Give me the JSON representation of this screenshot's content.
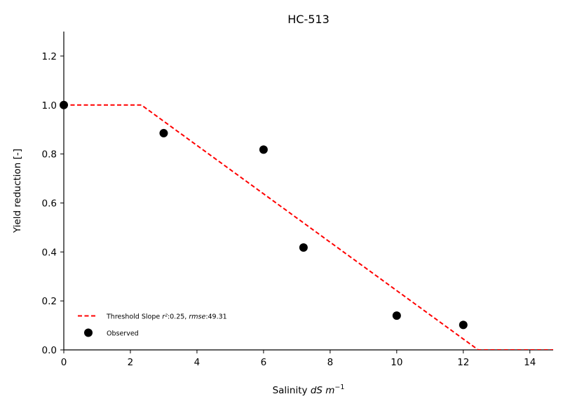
{
  "chart_data": {
    "type": "line",
    "title": "HC-513",
    "xlabel": {
      "prefix": "Salinity ",
      "italic": "dS m",
      "sup": "−1"
    },
    "ylabel": "Yield reduction [-]",
    "xlim": [
      0,
      14.7
    ],
    "ylim": [
      0,
      1.3
    ],
    "xticks": [
      0,
      2,
      4,
      6,
      8,
      10,
      12,
      14
    ],
    "yticks": [
      0.0,
      0.2,
      0.4,
      0.6,
      0.8,
      1.0,
      1.2
    ],
    "xtick_labels": [
      "0",
      "2",
      "4",
      "6",
      "8",
      "10",
      "12",
      "14"
    ],
    "ytick_labels": [
      "0.0",
      "0.2",
      "0.4",
      "0.6",
      "0.8",
      "1.0",
      "1.2"
    ],
    "grid": false,
    "legend_position": "lower-left",
    "series": [
      {
        "name": "Threshold Slope",
        "legend_label": {
          "prefix": "Threshold Slope ",
          "r2_label": "r²",
          "r2_value": ":0.25, ",
          "rmse_label": "rmse",
          "rmse_value": ":49.31"
        },
        "style": "dashed",
        "color": "#ff0000",
        "x": [
          0,
          2.33,
          12.45,
          14.7
        ],
        "y": [
          1.0,
          1.0,
          0.0,
          0.0
        ]
      },
      {
        "name": "Observed",
        "style": "marker",
        "color": "#000000",
        "x": [
          0,
          3,
          6,
          7.2,
          10,
          12
        ],
        "y": [
          1.0,
          0.885,
          0.818,
          0.418,
          0.14,
          0.102
        ]
      }
    ]
  }
}
